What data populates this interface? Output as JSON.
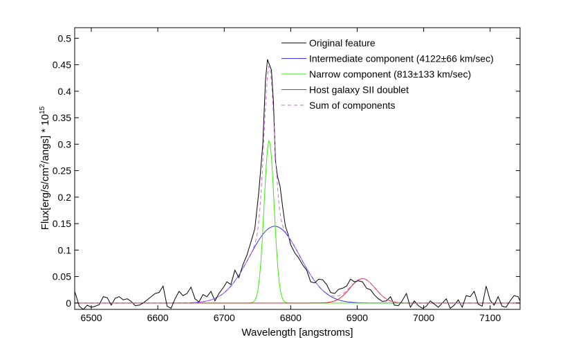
{
  "chart_data": {
    "type": "line",
    "xlabel": "Wavelength [angstroms]",
    "ylabel_main": "Flux[erg/s/cm",
    "ylabel_sup1": "2",
    "ylabel_mid": "/angs] * 10",
    "ylabel_sup2": "15",
    "xlim": [
      6475,
      7145
    ],
    "ylim": [
      -0.012,
      0.52
    ],
    "xticks": [
      6500,
      6600,
      6700,
      6800,
      6900,
      7000,
      7100
    ],
    "xtick_labels": [
      "6500",
      "6600",
      "6700",
      "6800",
      "6900",
      "7000",
      "7100"
    ],
    "yticks": [
      0,
      0.05,
      0.1,
      0.15,
      0.2,
      0.25,
      0.3,
      0.35,
      0.4,
      0.45,
      0.5
    ],
    "ytick_labels": [
      "0",
      "0.05",
      "0.1",
      "0.15",
      "0.2",
      "0.25",
      "0.3",
      "0.35",
      "0.4",
      "0.45",
      "0.5"
    ],
    "grid": false,
    "legend_position": "top-right",
    "series": [
      {
        "name": "Original feature",
        "color": "#000000",
        "dash": "solid",
        "x": [
          6475,
          6482,
          6488,
          6494,
          6500,
          6506,
          6512,
          6518,
          6524,
          6530,
          6536,
          6542,
          6548,
          6554,
          6560,
          6566,
          6572,
          6578,
          6584,
          6590,
          6596,
          6602,
          6608,
          6614,
          6620,
          6626,
          6632,
          6638,
          6644,
          6650,
          6656,
          6662,
          6668,
          6674,
          6680,
          6686,
          6692,
          6698,
          6704,
          6710,
          6716,
          6722,
          6728,
          6734,
          6740,
          6746,
          6752,
          6758,
          6762,
          6765,
          6768,
          6771,
          6774,
          6777,
          6780,
          6784,
          6788,
          6792,
          6796,
          6800,
          6806,
          6812,
          6818,
          6824,
          6830,
          6836,
          6842,
          6848,
          6854,
          6860,
          6866,
          6872,
          6878,
          6884,
          6890,
          6896,
          6902,
          6908,
          6914,
          6920,
          6926,
          6932,
          6938,
          6944,
          6950,
          6956,
          6962,
          6968,
          6974,
          6980,
          6986,
          6992,
          6998,
          7004,
          7010,
          7016,
          7022,
          7028,
          7034,
          7040,
          7046,
          7052,
          7058,
          7064,
          7070,
          7076,
          7082,
          7088,
          7094,
          7100,
          7106,
          7112,
          7118,
          7124,
          7130,
          7136,
          7142,
          7145
        ],
        "y": [
          0.022,
          -0.006,
          -0.012,
          -0.004,
          -0.008,
          -0.006,
          -0.003,
          0.012,
          0.01,
          -0.004,
          0.009,
          0.012,
          0.006,
          0.008,
          0.003,
          -0.005,
          -0.004,
          0.0,
          0.006,
          0.012,
          0.018,
          0.02,
          0.032,
          -0.006,
          -0.01,
          0.008,
          0.022,
          0.014,
          0.018,
          0.03,
          0.008,
          0.002,
          0.016,
          0.012,
          0.022,
          0.004,
          0.018,
          0.028,
          0.04,
          0.035,
          0.062,
          0.048,
          0.072,
          0.09,
          0.115,
          0.14,
          0.21,
          0.3,
          0.42,
          0.46,
          0.45,
          0.44,
          0.38,
          0.27,
          0.24,
          0.22,
          0.18,
          0.145,
          0.13,
          0.11,
          0.095,
          0.085,
          0.072,
          0.062,
          0.04,
          0.038,
          0.045,
          0.044,
          0.035,
          0.02,
          0.018,
          0.026,
          0.028,
          0.032,
          0.045,
          0.04,
          0.042,
          0.04,
          0.028,
          0.025,
          0.015,
          0.008,
          0.003,
          0.004,
          0.012,
          -0.004,
          -0.005,
          0.005,
          0.018,
          -0.008,
          0.004,
          -0.005,
          -0.01,
          -0.006,
          0.004,
          -0.002,
          -0.008,
          0.0,
          0.008,
          -0.01,
          -0.004,
          0.006,
          -0.008,
          0.014,
          0.012,
          0.022,
          -0.002,
          -0.006,
          0.032,
          0.005,
          -0.004,
          0.012,
          -0.006,
          -0.008,
          0.004,
          0.014,
          0.012,
          0.004
        ]
      },
      {
        "name": "Intermediate component (4122±66 km/sec)",
        "color": "#3333ee",
        "dash": "solid",
        "gaussian": {
          "amplitude": 0.145,
          "center": 6776,
          "sigma": 38
        }
      },
      {
        "name": "Narrow component (813±133 km/sec)",
        "color": "#33ee00",
        "dash": "solid",
        "gaussian": {
          "amplitude": 0.307,
          "center": 6767.5,
          "sigma": 7.5
        }
      },
      {
        "name": "Host galaxy SII doublet",
        "color": "#ee2222",
        "dash": "solid",
        "gaussian": {
          "amplitude": 0.046,
          "center": 6908,
          "sigma": 19
        }
      },
      {
        "name": "Sum of components",
        "color": "#cc66ee",
        "dash": "dashed",
        "sum_of": [
          1,
          2,
          3
        ]
      }
    ]
  }
}
